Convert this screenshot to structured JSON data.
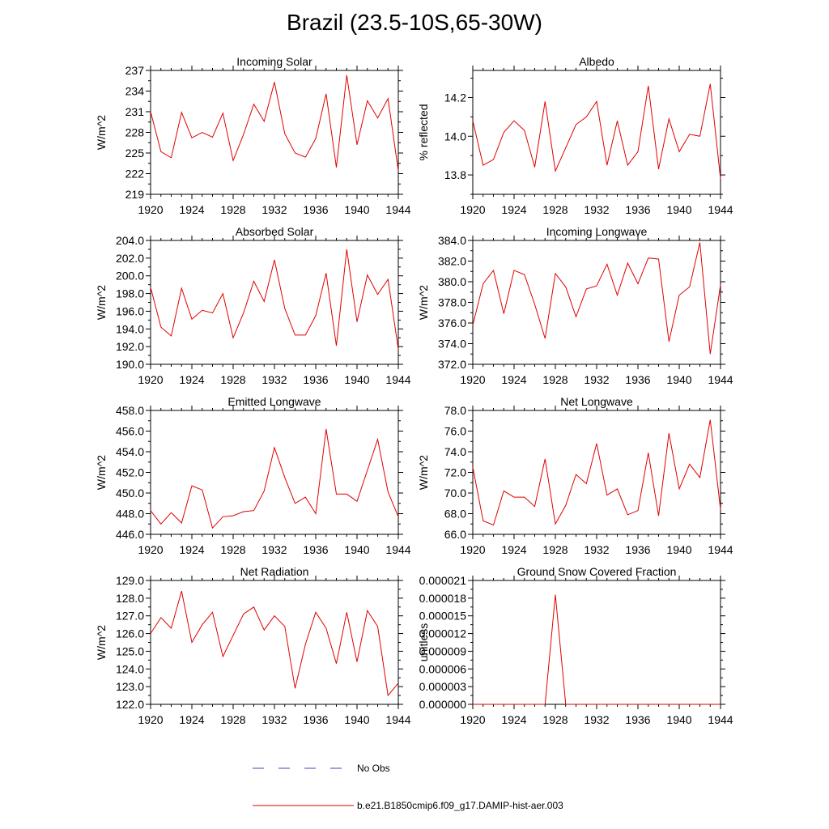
{
  "figure": {
    "title": "Brazil (23.5-10S,65-30W)"
  },
  "legend": {
    "items": [
      {
        "label": "No Obs",
        "color": "#4040c0",
        "style": "dashed"
      },
      {
        "label": "b.e21.B1850cmip6.f09_g17.DAMIP-hist-aer.003",
        "color": "#e00000",
        "style": "solid"
      }
    ]
  },
  "chart_data": [
    {
      "type": "line",
      "title": "Incoming Solar",
      "ylabel": "W/m^2",
      "xlim": [
        1920,
        1944
      ],
      "ylim": [
        219,
        237
      ],
      "yticks": [
        "219",
        "222",
        "225",
        "228",
        "231",
        "234",
        "237"
      ],
      "ytick_values": [
        219,
        222,
        225,
        228,
        231,
        234,
        237
      ],
      "xticks": [
        "1920",
        "1924",
        "1928",
        "1932",
        "1936",
        "1940",
        "1944"
      ],
      "series": [
        {
          "color": "#e00000",
          "x": [
            1920,
            1921,
            1922,
            1923,
            1924,
            1925,
            1926,
            1927,
            1928,
            1929,
            1930,
            1931,
            1932,
            1933,
            1934,
            1935,
            1936,
            1937,
            1938,
            1939,
            1940,
            1941,
            1942,
            1943,
            1944
          ],
          "values": [
            231.0,
            225.2,
            224.3,
            230.9,
            227.2,
            228.0,
            227.3,
            230.8,
            223.9,
            227.7,
            232.1,
            229.6,
            235.3,
            227.8,
            225.0,
            224.4,
            227.1,
            233.6,
            222.9,
            236.3,
            226.2,
            232.6,
            230.1,
            232.9,
            222.4
          ]
        }
      ]
    },
    {
      "type": "line",
      "title": "Albedo",
      "ylabel": "% reflected",
      "xlim": [
        1920,
        1944
      ],
      "ylim": [
        13.7,
        14.34
      ],
      "yticks": [
        "13.8",
        "14.0",
        "14.2"
      ],
      "ytick_values": [
        13.8,
        14.0,
        14.2
      ],
      "xticks": [
        "1920",
        "1924",
        "1928",
        "1932",
        "1936",
        "1940",
        "1944"
      ],
      "series": [
        {
          "color": "#e00000",
          "x": [
            1920,
            1921,
            1922,
            1923,
            1924,
            1925,
            1926,
            1927,
            1928,
            1929,
            1930,
            1931,
            1932,
            1933,
            1934,
            1935,
            1936,
            1937,
            1938,
            1939,
            1940,
            1941,
            1942,
            1943,
            1944
          ],
          "values": [
            14.08,
            13.85,
            13.88,
            14.02,
            14.08,
            14.03,
            13.84,
            14.18,
            13.82,
            13.94,
            14.06,
            14.1,
            14.18,
            13.85,
            14.08,
            13.85,
            13.92,
            14.26,
            13.83,
            14.09,
            13.92,
            14.01,
            14.0,
            14.27,
            13.78
          ]
        }
      ]
    },
    {
      "type": "line",
      "title": "Absorbed Solar",
      "ylabel": "W/m^2",
      "xlim": [
        1920,
        1944
      ],
      "ylim": [
        190,
        204
      ],
      "yticks": [
        "190.0",
        "192.0",
        "194.0",
        "196.0",
        "198.0",
        "200.0",
        "202.0",
        "204.0"
      ],
      "ytick_values": [
        190,
        192,
        194,
        196,
        198,
        200,
        202,
        204
      ],
      "xticks": [
        "1920",
        "1924",
        "1928",
        "1932",
        "1936",
        "1940",
        "1944"
      ],
      "series": [
        {
          "color": "#e00000",
          "x": [
            1920,
            1921,
            1922,
            1923,
            1924,
            1925,
            1926,
            1927,
            1928,
            1929,
            1930,
            1931,
            1932,
            1933,
            1934,
            1935,
            1936,
            1937,
            1938,
            1939,
            1940,
            1941,
            1942,
            1943,
            1944
          ],
          "values": [
            198.7,
            194.2,
            193.2,
            198.6,
            195.1,
            196.1,
            195.8,
            198.0,
            193.0,
            195.8,
            199.4,
            197.1,
            201.8,
            196.3,
            193.3,
            193.3,
            195.5,
            200.3,
            192.1,
            203.0,
            194.8,
            200.1,
            197.9,
            199.6,
            191.7
          ]
        }
      ]
    },
    {
      "type": "line",
      "title": "Incoming Longwave",
      "ylabel": "W/m^2",
      "xlim": [
        1920,
        1944
      ],
      "ylim": [
        372,
        384
      ],
      "yticks": [
        "372.0",
        "374.0",
        "376.0",
        "378.0",
        "380.0",
        "382.0",
        "384.0"
      ],
      "ytick_values": [
        372,
        374,
        376,
        378,
        380,
        382,
        384
      ],
      "xticks": [
        "1920",
        "1924",
        "1928",
        "1932",
        "1936",
        "1940",
        "1944"
      ],
      "series": [
        {
          "color": "#e00000",
          "x": [
            1920,
            1921,
            1922,
            1923,
            1924,
            1925,
            1926,
            1927,
            1928,
            1929,
            1930,
            1931,
            1932,
            1933,
            1934,
            1935,
            1936,
            1937,
            1938,
            1939,
            1940,
            1941,
            1942,
            1943,
            1944
          ],
          "values": [
            375.8,
            379.8,
            381.1,
            376.9,
            381.1,
            380.7,
            377.8,
            374.5,
            380.8,
            379.5,
            376.6,
            379.3,
            379.6,
            381.7,
            378.7,
            381.8,
            379.8,
            382.3,
            382.2,
            374.2,
            378.7,
            379.5,
            383.8,
            373.0,
            379.7
          ]
        }
      ]
    },
    {
      "type": "line",
      "title": "Emitted Longwave",
      "ylabel": "W/m^2",
      "xlim": [
        1920,
        1944
      ],
      "ylim": [
        446,
        458
      ],
      "yticks": [
        "446.0",
        "448.0",
        "450.0",
        "452.0",
        "454.0",
        "456.0",
        "458.0"
      ],
      "ytick_values": [
        446,
        448,
        450,
        452,
        454,
        456,
        458
      ],
      "xticks": [
        "1920",
        "1924",
        "1928",
        "1932",
        "1936",
        "1940",
        "1944"
      ],
      "series": [
        {
          "color": "#e00000",
          "x": [
            1920,
            1921,
            1922,
            1923,
            1924,
            1925,
            1926,
            1927,
            1928,
            1929,
            1930,
            1931,
            1932,
            1933,
            1934,
            1935,
            1936,
            1937,
            1938,
            1939,
            1940,
            1941,
            1942,
            1943,
            1944
          ],
          "values": [
            448.3,
            447.0,
            448.1,
            447.1,
            450.7,
            450.3,
            446.6,
            447.7,
            447.8,
            448.2,
            448.3,
            450.2,
            454.4,
            451.5,
            449.0,
            449.6,
            448.0,
            456.2,
            449.9,
            449.9,
            449.2,
            452.2,
            455.2,
            450.1,
            447.7
          ]
        }
      ]
    },
    {
      "type": "line",
      "title": "Net Longwave",
      "ylabel": "W/m^2",
      "xlim": [
        1920,
        1944
      ],
      "ylim": [
        66,
        78
      ],
      "yticks": [
        "66.0",
        "68.0",
        "70.0",
        "72.0",
        "74.0",
        "76.0",
        "78.0"
      ],
      "ytick_values": [
        66,
        68,
        70,
        72,
        74,
        76,
        78
      ],
      "xticks": [
        "1920",
        "1924",
        "1928",
        "1932",
        "1936",
        "1940",
        "1944"
      ],
      "series": [
        {
          "color": "#e00000",
          "x": [
            1920,
            1921,
            1922,
            1923,
            1924,
            1925,
            1926,
            1927,
            1928,
            1929,
            1930,
            1931,
            1932,
            1933,
            1934,
            1935,
            1936,
            1937,
            1938,
            1939,
            1940,
            1941,
            1942,
            1943,
            1944
          ],
          "values": [
            72.5,
            67.3,
            66.9,
            70.2,
            69.6,
            69.6,
            68.7,
            73.3,
            67.0,
            68.8,
            71.8,
            70.9,
            74.8,
            69.8,
            70.4,
            67.9,
            68.3,
            73.9,
            67.8,
            75.8,
            70.4,
            72.8,
            71.5,
            77.1,
            68.4
          ]
        }
      ]
    },
    {
      "type": "line",
      "title": "Net Radiation",
      "ylabel": "W/m^2",
      "xlim": [
        1920,
        1944
      ],
      "ylim": [
        122,
        129
      ],
      "yticks": [
        "122.0",
        "123.0",
        "124.0",
        "125.0",
        "126.0",
        "127.0",
        "128.0",
        "129.0"
      ],
      "ytick_values": [
        122,
        123,
        124,
        125,
        126,
        127,
        128,
        129
      ],
      "xticks": [
        "1920",
        "1924",
        "1928",
        "1932",
        "1936",
        "1940",
        "1944"
      ],
      "series": [
        {
          "color": "#e00000",
          "x": [
            1920,
            1921,
            1922,
            1923,
            1924,
            1925,
            1926,
            1927,
            1928,
            1929,
            1930,
            1931,
            1932,
            1933,
            1934,
            1935,
            1936,
            1937,
            1938,
            1939,
            1940,
            1941,
            1942,
            1943,
            1944
          ],
          "values": [
            126.0,
            126.9,
            126.3,
            128.4,
            125.5,
            126.5,
            127.2,
            124.7,
            125.9,
            127.1,
            127.5,
            126.2,
            127.0,
            126.4,
            122.9,
            125.4,
            127.2,
            126.3,
            124.3,
            127.2,
            124.4,
            127.3,
            126.4,
            122.5,
            123.2
          ]
        }
      ]
    },
    {
      "type": "line",
      "title": "Ground Snow Covered Fraction",
      "ylabel": "unitless",
      "xlim": [
        1920,
        1944
      ],
      "ylim": [
        0,
        2.1e-05
      ],
      "yticks": [
        "0.000000",
        "0.000003",
        "0.000006",
        "0.000009",
        "0.000012",
        "0.000015",
        "0.000018",
        "0.000021"
      ],
      "ytick_values": [
        0,
        3e-06,
        6e-06,
        9e-06,
        1.2e-05,
        1.5e-05,
        1.8e-05,
        2.1e-05
      ],
      "xticks": [
        "1920",
        "1924",
        "1928",
        "1932",
        "1936",
        "1940",
        "1944"
      ],
      "series": [
        {
          "color": "#e00000",
          "x": [
            1920,
            1921,
            1922,
            1923,
            1924,
            1925,
            1926,
            1927,
            1928,
            1929,
            1930,
            1931,
            1932,
            1933,
            1934,
            1935,
            1936,
            1937,
            1938,
            1939,
            1940,
            1941,
            1942,
            1943,
            1944
          ],
          "values": [
            0,
            0,
            0,
            0,
            0,
            0,
            0,
            0,
            1.86e-05,
            0,
            0,
            0,
            0,
            0,
            0,
            0,
            0,
            0,
            0,
            0,
            0,
            0,
            0,
            0,
            0
          ]
        }
      ]
    }
  ]
}
